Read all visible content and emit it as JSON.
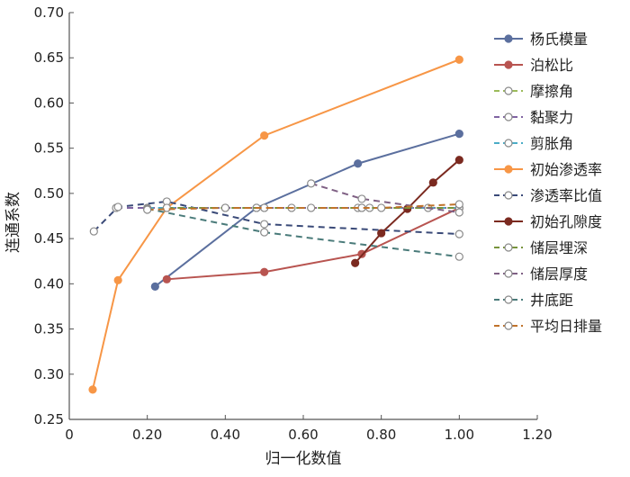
{
  "chart_data": {
    "type": "line",
    "title": "",
    "xlabel": "归一化数值",
    "ylabel": "连通系数",
    "xlim": [
      0,
      1.2
    ],
    "ylim": [
      0.25,
      0.7
    ],
    "xticks": [
      0,
      0.2,
      0.4,
      0.6,
      0.8,
      1.0,
      1.2
    ],
    "xtick_labels": [
      "0",
      "0.20",
      "0.40",
      "0.60",
      "0.80",
      "1.00",
      "1.20"
    ],
    "yticks": [
      0.25,
      0.3,
      0.35,
      0.4,
      0.45,
      0.5,
      0.55,
      0.6,
      0.65,
      0.7
    ],
    "ytick_labels": [
      "0.25",
      "0.30",
      "0.35",
      "0.40",
      "0.45",
      "0.50",
      "0.55",
      "0.60",
      "0.65",
      "0.70"
    ],
    "grid": false,
    "legend_position": "right",
    "series": [
      {
        "name": "杨氏模量",
        "color": "#5b6f9e",
        "dash": false,
        "filled": true,
        "x": [
          0.22,
          0.48,
          0.74,
          1.0
        ],
        "y": [
          0.397,
          0.484,
          0.533,
          0.566
        ]
      },
      {
        "name": "泊松比",
        "color": "#b85450",
        "dash": false,
        "filled": true,
        "x": [
          0.25,
          0.5,
          0.75,
          1.0
        ],
        "y": [
          0.405,
          0.413,
          0.433,
          0.484
        ]
      },
      {
        "name": "摩擦角",
        "color": "#9bbb59",
        "dash": true,
        "filled": false,
        "x": [
          0.25,
          0.48,
          0.74,
          0.92,
          1.0
        ],
        "y": [
          0.484,
          0.484,
          0.484,
          0.484,
          0.484
        ]
      },
      {
        "name": "黏聚力",
        "color": "#8064a2",
        "dash": true,
        "filled": false,
        "x": [
          0.12,
          0.25,
          0.5,
          0.75,
          1.0
        ],
        "y": [
          0.484,
          0.484,
          0.484,
          0.484,
          0.484
        ]
      },
      {
        "name": "剪胀角",
        "color": "#4bacc6",
        "dash": true,
        "filled": false,
        "x": [
          0.2,
          0.4,
          0.57,
          0.77,
          1.0
        ],
        "y": [
          0.484,
          0.484,
          0.484,
          0.484,
          0.484
        ]
      },
      {
        "name": "初始渗透率",
        "color": "#f79646",
        "dash": false,
        "filled": true,
        "x": [
          0.06,
          0.125,
          0.25,
          0.5,
          1.0
        ],
        "y": [
          0.283,
          0.404,
          0.484,
          0.564,
          0.648
        ]
      },
      {
        "name": "渗透率比值",
        "color": "#3a4a78",
        "dash": true,
        "filled": false,
        "x": [
          0.063,
          0.125,
          0.25,
          0.5,
          1.0
        ],
        "y": [
          0.458,
          0.485,
          0.491,
          0.466,
          0.455
        ]
      },
      {
        "name": "初始孔隙度",
        "color": "#7b2a20",
        "dash": false,
        "filled": true,
        "x": [
          0.733,
          0.8,
          0.867,
          0.933,
          1.0
        ],
        "y": [
          0.423,
          0.456,
          0.483,
          0.512,
          0.537
        ]
      },
      {
        "name": "储层埋深",
        "color": "#77933c",
        "dash": true,
        "filled": false,
        "x": [
          0.25,
          0.5,
          0.75,
          1.0
        ],
        "y": [
          0.484,
          0.484,
          0.484,
          0.484
        ]
      },
      {
        "name": "储层厚度",
        "color": "#7f6084",
        "dash": true,
        "filled": false,
        "x": [
          0.62,
          0.75,
          1.0
        ],
        "y": [
          0.511,
          0.494,
          0.479
        ]
      },
      {
        "name": "井底距",
        "color": "#4a7b7a",
        "dash": true,
        "filled": false,
        "x": [
          0.2,
          0.5,
          1.0
        ],
        "y": [
          0.483,
          0.457,
          0.43
        ]
      },
      {
        "name": "平均日排量",
        "color": "#c0722a",
        "dash": true,
        "filled": false,
        "x": [
          0.2,
          0.4,
          0.62,
          0.8,
          1.0
        ],
        "y": [
          0.482,
          0.484,
          0.484,
          0.484,
          0.488
        ]
      }
    ]
  }
}
